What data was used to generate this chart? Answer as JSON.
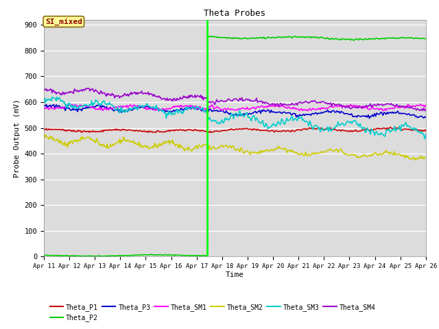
{
  "title": "Theta Probes",
  "ylabel": "Probe Output (mV)",
  "xlabel": "Time",
  "annotation_text": "SI_mixed",
  "annotation_color": "#8B0000",
  "annotation_bg": "#FFFF99",
  "annotation_border": "#8B6914",
  "event_day": 17.42,
  "ylim": [
    0,
    920
  ],
  "yticks": [
    0,
    100,
    200,
    300,
    400,
    500,
    600,
    700,
    800,
    900
  ],
  "xtick_labels": [
    "Apr 11",
    "Apr 12",
    "Apr 13",
    "Apr 14",
    "Apr 15",
    "Apr 16",
    "Apr 17",
    "Apr 18",
    "Apr 19",
    "Apr 20",
    "Apr 21",
    "Apr 22",
    "Apr 23",
    "Apr 24",
    "Apr 25",
    "Apr 26"
  ],
  "bg_color": "#dcdcdc",
  "series": {
    "Theta_P1": {
      "color": "#cc0000",
      "lw": 1.2
    },
    "Theta_P2": {
      "color": "#00cc00",
      "lw": 1.2
    },
    "Theta_P3": {
      "color": "#0000cc",
      "lw": 1.2
    },
    "Theta_SM1": {
      "color": "#ff00ff",
      "lw": 1.2
    },
    "Theta_SM2": {
      "color": "#cccc00",
      "lw": 1.2
    },
    "Theta_SM3": {
      "color": "#00cccc",
      "lw": 1.2
    },
    "Theta_SM4": {
      "color": "#9900cc",
      "lw": 1.2
    }
  }
}
